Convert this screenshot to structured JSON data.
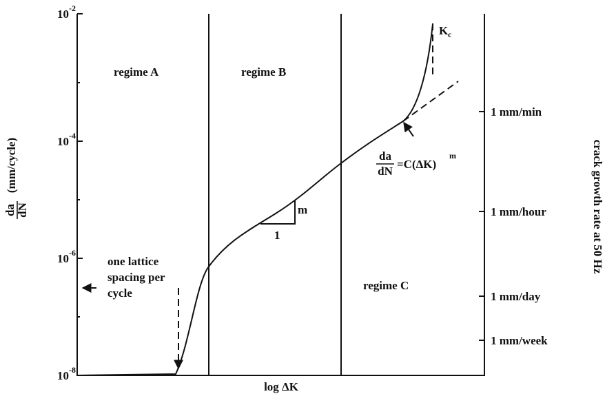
{
  "left_axis": {
    "label_numerator": "da",
    "label_denominator": "dN",
    "label_unit": "(mm/cycle)",
    "ticks": [
      {
        "base": "10",
        "exponent": "-2"
      },
      {
        "base": "10",
        "exponent": "-4"
      },
      {
        "base": "10",
        "exponent": "-6"
      },
      {
        "base": "10",
        "exponent": "-8"
      }
    ]
  },
  "right_axis": {
    "label": "crack growth rate at 50 Hz",
    "ticks": [
      "1 mm/min",
      "1 mm/hour",
      "1 mm/day",
      "1 mm/week"
    ]
  },
  "x_axis": {
    "label": "log ΔK"
  },
  "regimes": [
    "regime A",
    "regime B",
    "regime C"
  ],
  "annotations": {
    "lattice": [
      "one lattice",
      "spacing per",
      "cycle"
    ],
    "slope_rise": "m",
    "slope_run": "1",
    "kc": {
      "base": "K",
      "subscript": "c"
    },
    "equation": {
      "numerator": "da",
      "denominator": "dN",
      "rhs": "=C(ΔK)",
      "exponent": "m"
    }
  }
}
